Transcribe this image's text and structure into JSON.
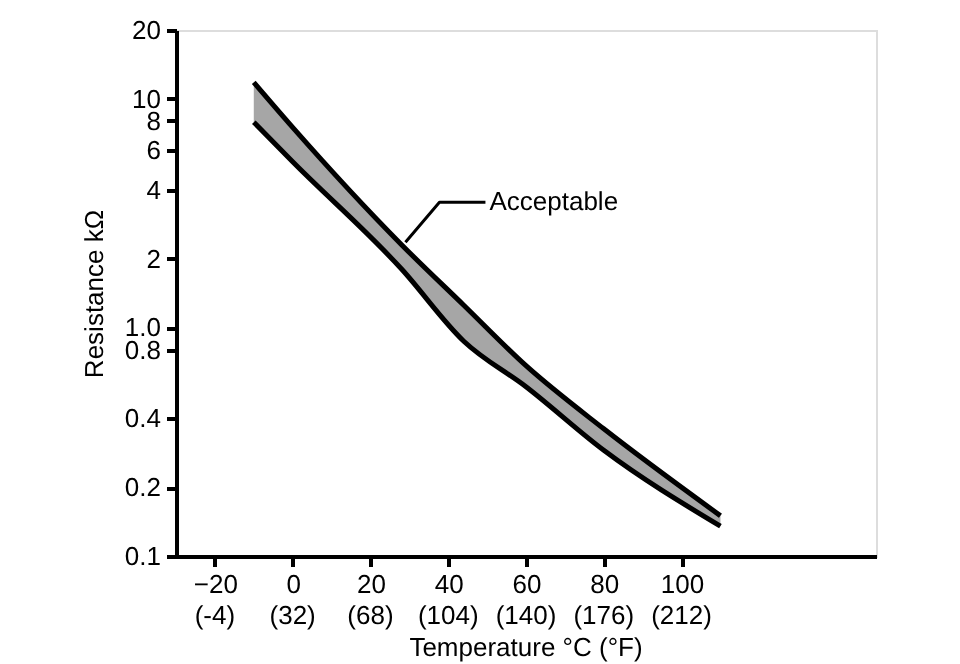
{
  "chart_data": {
    "type": "line",
    "xlabel": "Temperature °C (°F)",
    "ylabel": "Resistance  kΩ",
    "log": "y",
    "grid": false,
    "xlim": [
      -30,
      150
    ],
    "ylim": [
      0.1,
      20
    ],
    "xticks": [
      -20,
      0,
      20,
      40,
      60,
      80,
      100
    ],
    "x2lim": [
      -22,
      302
    ],
    "x2ticks": [
      {
        "value": -4,
        "label": "(-4)"
      },
      {
        "value": 32,
        "label": "(32)"
      },
      {
        "value": 68,
        "label": "(68)"
      },
      {
        "value": 104,
        "label": "(104)"
      },
      {
        "value": 140,
        "label": "(140)"
      },
      {
        "value": 176,
        "label": "(176)"
      },
      {
        "value": 212,
        "label": "(212)"
      }
    ],
    "yticks": [
      0.1,
      0.2,
      0.4,
      0.8,
      {
        "value": 1,
        "label": "1.0"
      },
      2,
      4,
      6,
      8,
      10,
      20
    ],
    "series": [
      {
        "color": "#000000",
        "x": [
          -10,
          0,
          28,
          44,
          60,
          80,
          110
        ],
        "values": [
          11.8,
          7.5,
          2.3,
          1.25,
          0.68,
          0.36,
          0.15
        ],
        "lower": [
          7.9,
          5.3,
          1.8,
          0.87,
          0.55,
          0.29,
          0.135
        ],
        "upper": [
          11.8,
          7.5,
          2.3,
          1.25,
          0.68,
          0.36,
          0.15
        ]
      },
      {
        "color": "#000000",
        "x": [
          -10,
          0,
          28,
          44,
          60,
          80,
          110
        ],
        "values": [
          7.9,
          5.3,
          1.8,
          0.87,
          0.55,
          0.29,
          0.135
        ]
      }
    ],
    "annotations": [
      {
        "text": "Acceptable",
        "x": 29,
        "y": 2.36
      }
    ]
  }
}
